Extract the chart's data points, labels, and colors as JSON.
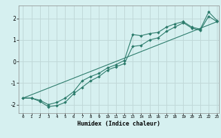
{
  "xlabel": "Humidex (Indice chaleur)",
  "bg_color": "#d6f0f0",
  "grid_color": "#c0d8d8",
  "line_color": "#2a7a6a",
  "xlim": [
    -0.5,
    23.2
  ],
  "ylim": [
    -2.4,
    2.6
  ],
  "xticks": [
    0,
    1,
    2,
    3,
    4,
    5,
    6,
    7,
    8,
    9,
    10,
    11,
    12,
    13,
    14,
    15,
    16,
    17,
    18,
    19,
    20,
    21,
    22,
    23
  ],
  "yticks": [
    -2,
    -1,
    0,
    1,
    2
  ],
  "line1_x": [
    0,
    1,
    2,
    3,
    4,
    5,
    6,
    7,
    8,
    9,
    10,
    11,
    12,
    13,
    14,
    15,
    16,
    17,
    18,
    19,
    20,
    21,
    22,
    23
  ],
  "line1_y": [
    -1.7,
    -1.7,
    -1.8,
    -2.0,
    -1.9,
    -1.7,
    -1.4,
    -0.9,
    -0.7,
    -0.55,
    -0.3,
    -0.15,
    0.05,
    1.25,
    1.2,
    1.3,
    1.35,
    1.6,
    1.75,
    1.85,
    1.6,
    1.5,
    2.3,
    1.9
  ],
  "line2_x": [
    0,
    1,
    2,
    3,
    4,
    5,
    6,
    7,
    8,
    9,
    10,
    11,
    12,
    13,
    14,
    15,
    16,
    17,
    18,
    19,
    20,
    21,
    22,
    23
  ],
  "line2_y": [
    -1.7,
    -1.7,
    -1.85,
    -2.1,
    -2.05,
    -1.9,
    -1.5,
    -1.2,
    -0.9,
    -0.7,
    -0.4,
    -0.25,
    -0.1,
    0.7,
    0.75,
    1.0,
    1.1,
    1.4,
    1.6,
    1.8,
    1.55,
    1.45,
    2.1,
    1.85
  ],
  "line3_x": [
    0,
    23
  ],
  "line3_y": [
    -1.7,
    1.85
  ]
}
